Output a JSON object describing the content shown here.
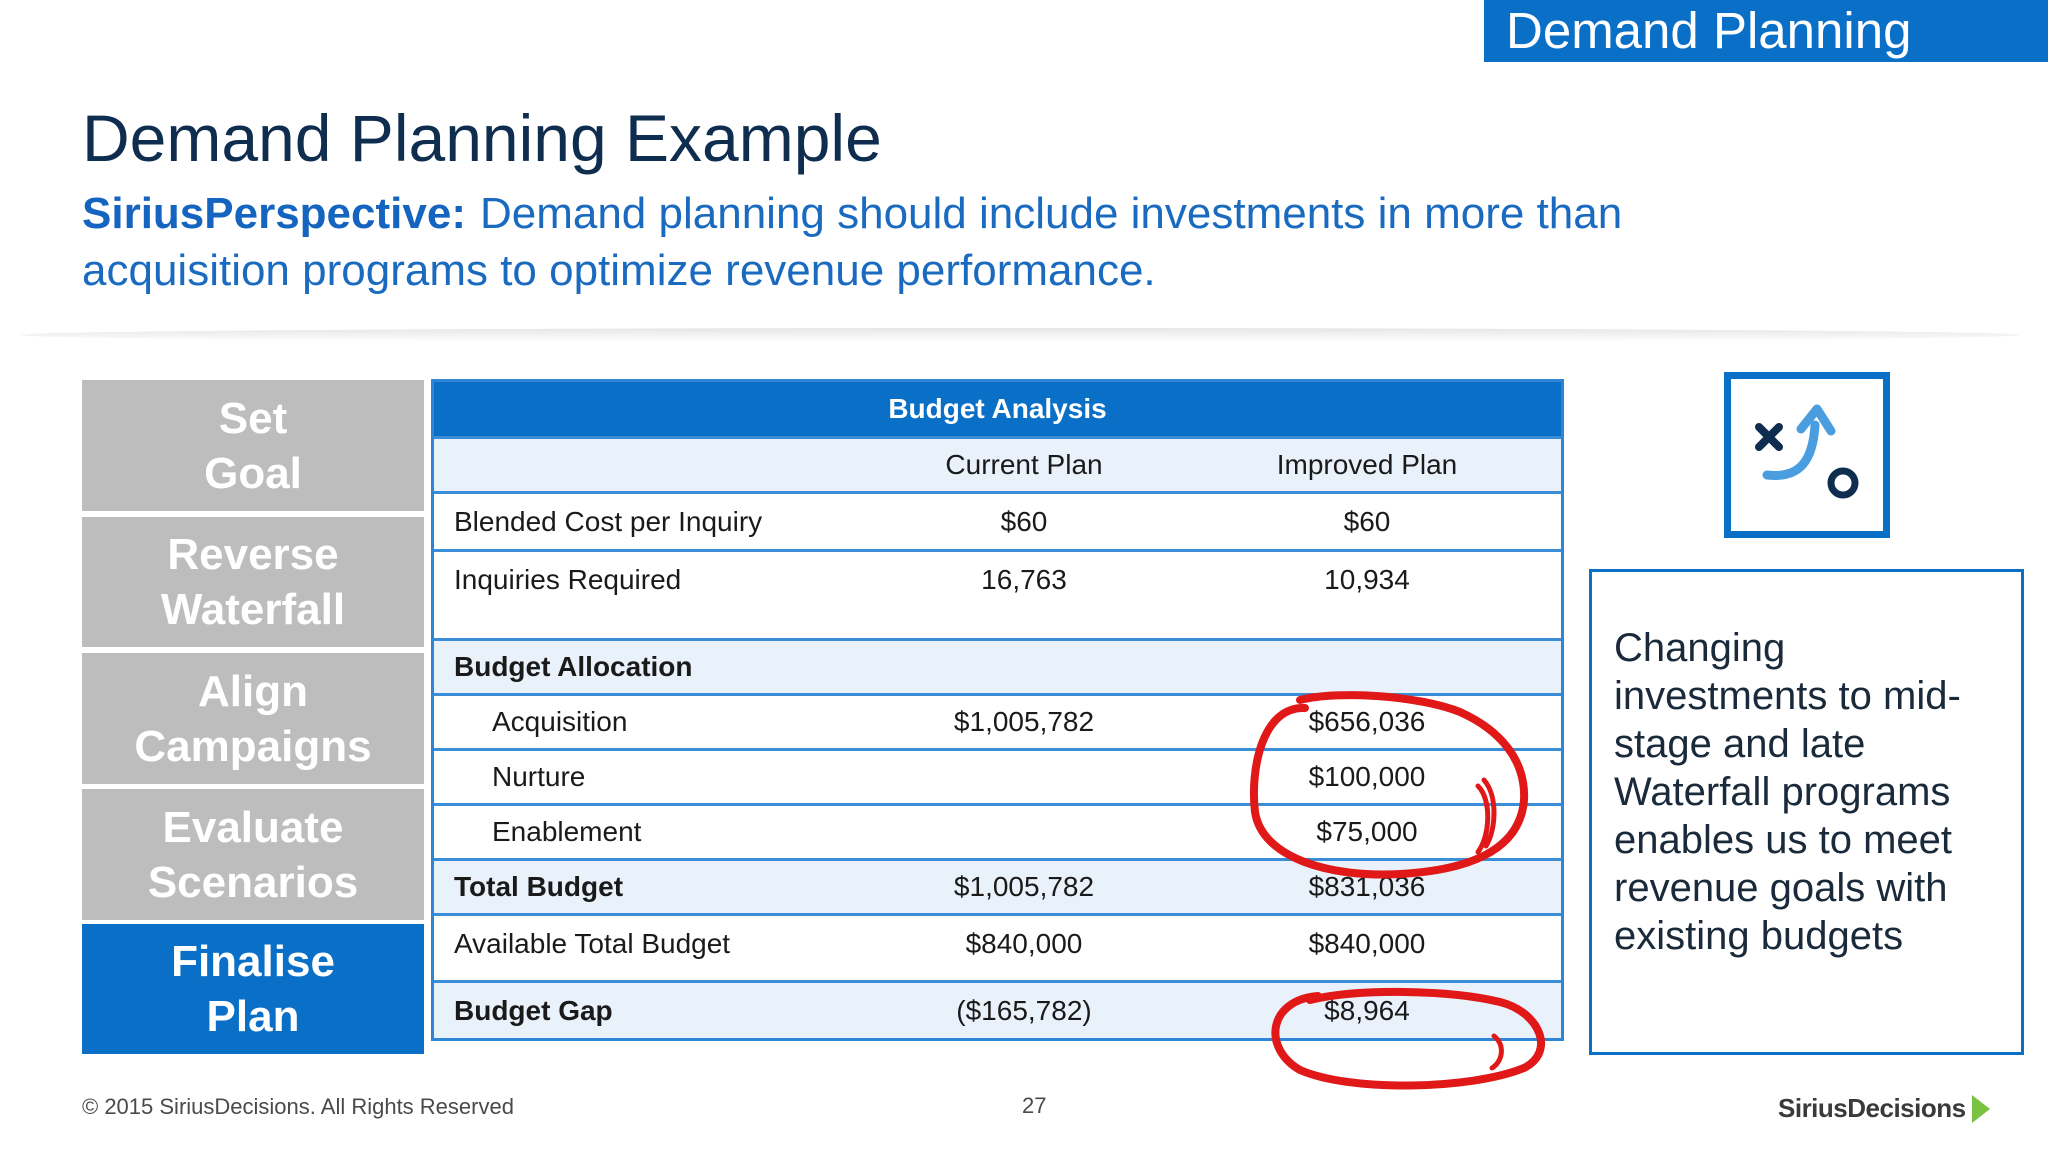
{
  "header": {
    "section_tag": "Demand Planning",
    "title": "Demand Planning Example",
    "perspective_label": "SiriusPerspective:",
    "perspective_text": "Demand planning should include investments in more than acquisition programs to optimize revenue performance."
  },
  "steps": [
    {
      "label": "Set\nGoal",
      "active": false
    },
    {
      "label": "Reverse\nWaterfall",
      "active": false
    },
    {
      "label": "Align\nCampaigns",
      "active": false
    },
    {
      "label": "Evaluate\nScenarios",
      "active": false
    },
    {
      "label": "Finalise\nPlan",
      "active": true
    }
  ],
  "table": {
    "title": "Budget Analysis",
    "columns": [
      "",
      "Current Plan",
      "Improved Plan"
    ],
    "rows": [
      {
        "label": "Blended Cost per Inquiry",
        "current": "$60",
        "improved": "$60"
      },
      {
        "label": "Inquiries Required",
        "current": "16,763",
        "improved": "10,934"
      },
      {
        "label": "Budget Allocation",
        "current": "",
        "improved": ""
      },
      {
        "label": "Acquisition",
        "current": "$1,005,782",
        "improved": "$656,036"
      },
      {
        "label": "Nurture",
        "current": "",
        "improved": "$100,000"
      },
      {
        "label": "Enablement",
        "current": "",
        "improved": "$75,000"
      },
      {
        "label": "Total Budget",
        "current": "$1,005,782",
        "improved": "$831,036"
      },
      {
        "label": "Available Total Budget",
        "current": "$840,000",
        "improved": "$840,000"
      },
      {
        "label": "Budget Gap",
        "current": "($165,782)",
        "improved": "$8,964"
      }
    ]
  },
  "callout": {
    "text": "Changing investments to mid-stage and late Waterfall programs enables us to meet revenue goals with existing budgets"
  },
  "icon": "strategy-play-icon",
  "colors": {
    "brand_blue": "#0a6fc7",
    "step_gray": "#bdbdbd",
    "annotation_red": "#e01818",
    "logo_green": "#7cc242"
  },
  "footer": {
    "copyright": "© 2015 SiriusDecisions. All Rights Reserved",
    "page_number": "27",
    "brand": "SiriusDecisions"
  }
}
